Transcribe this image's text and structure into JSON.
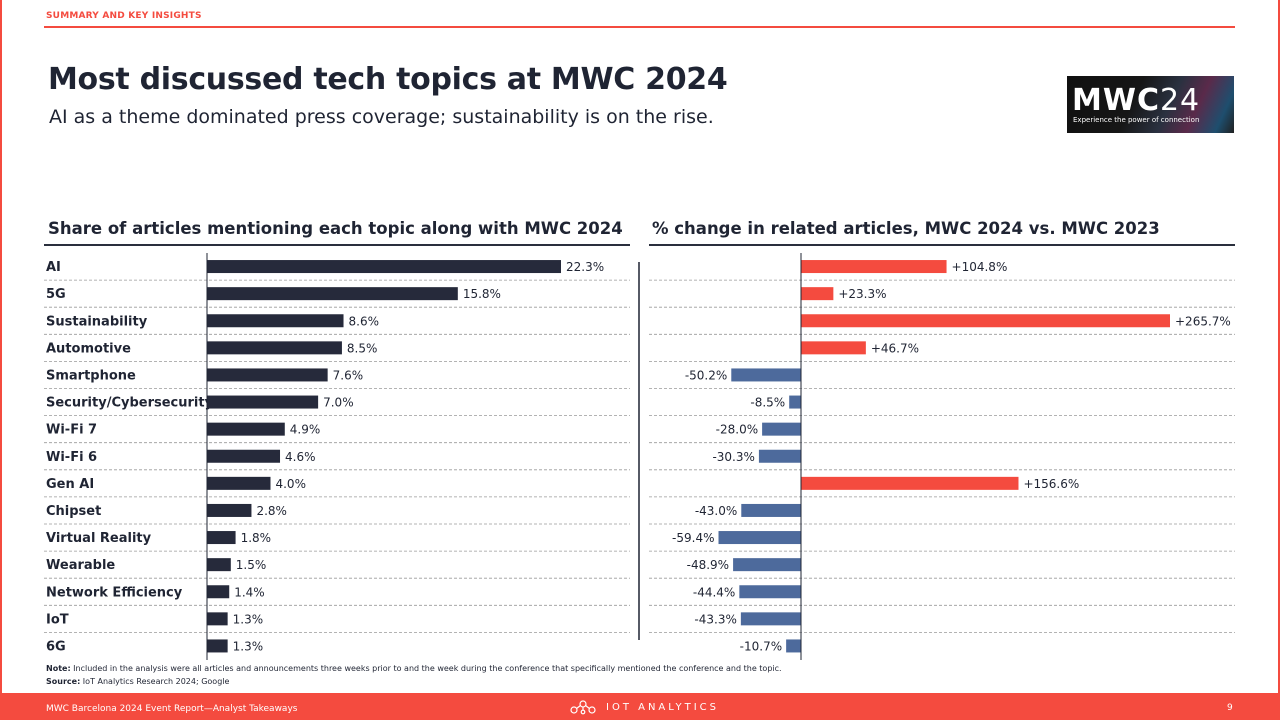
{
  "section_tag": "SUMMARY AND KEY INSIGHTS",
  "title": "Most discussed tech topics at MWC 2024",
  "subtitle": "AI as a theme dominated press coverage; sustainability is on the rise.",
  "logo": {
    "text_main": "MWC",
    "text_num": "24",
    "tagline": "Experience the power of connection"
  },
  "chart_data": [
    {
      "type": "bar",
      "orientation": "horizontal",
      "title": "Share of articles mentioning each topic along with MWC 2024",
      "categories": [
        "AI",
        "5G",
        "Sustainability",
        "Automotive",
        "Smartphone",
        "Security/Cybersecurity",
        "Wi-Fi 7",
        "Wi-Fi 6",
        "Gen AI",
        "Chipset",
        "Virtual Reality",
        "Wearable",
        "Network Efficiency",
        "IoT",
        "6G"
      ],
      "values": [
        22.3,
        15.8,
        8.6,
        8.5,
        7.6,
        7.0,
        4.9,
        4.6,
        4.0,
        2.8,
        1.8,
        1.5,
        1.4,
        1.3,
        1.3
      ],
      "labels": [
        "22.3%",
        "15.8%",
        "8.6%",
        "8.5%",
        "7.6%",
        "7.0%",
        "4.9%",
        "4.6%",
        "4.0%",
        "2.8%",
        "1.8%",
        "1.5%",
        "1.4%",
        "1.3%",
        "1.3%"
      ],
      "unit": "%",
      "color": "#262a3b"
    },
    {
      "type": "bar",
      "orientation": "horizontal",
      "title": "% change in related articles, MWC 2024 vs. MWC 2023",
      "categories": [
        "AI",
        "5G",
        "Sustainability",
        "Automotive",
        "Smartphone",
        "Security/Cybersecurity",
        "Wi-Fi 7",
        "Wi-Fi 6",
        "Gen AI",
        "Chipset",
        "Virtual Reality",
        "Wearable",
        "Network Efficiency",
        "IoT",
        "6G"
      ],
      "values": [
        104.8,
        23.3,
        265.7,
        46.7,
        -50.2,
        -8.5,
        -28.0,
        -30.3,
        156.6,
        -43.0,
        -59.4,
        -48.9,
        -44.4,
        -43.3,
        -10.7
      ],
      "labels": [
        "+104.8%",
        "+23.3%",
        "+265.7%",
        "+46.7%",
        "-50.2%",
        "-8.5%",
        "-28.0%",
        "-30.3%",
        "+156.6%",
        "-43.0%",
        "-59.4%",
        "-48.9%",
        "-44.4%",
        "-43.3%",
        "-10.7%"
      ],
      "unit": "%",
      "positive_color": "#f44b3f",
      "negative_color": "#4d6a9c"
    }
  ],
  "note_label": "Note:",
  "note_text": " Included in the analysis were all articles and announcements three weeks prior to and the week during the conference that specifically mentioned the conference and the topic.",
  "source_label": "Source:",
  "source_text": " IoT Analytics Research 2024; Google",
  "footer": {
    "left": "MWC Barcelona 2024 Event Report—Analyst Takeaways",
    "brand": "IOT ANALYTICS",
    "page": "9"
  },
  "colors": {
    "accent": "#f44b3f",
    "dark": "#262a3b",
    "negative": "#4d6a9c"
  }
}
